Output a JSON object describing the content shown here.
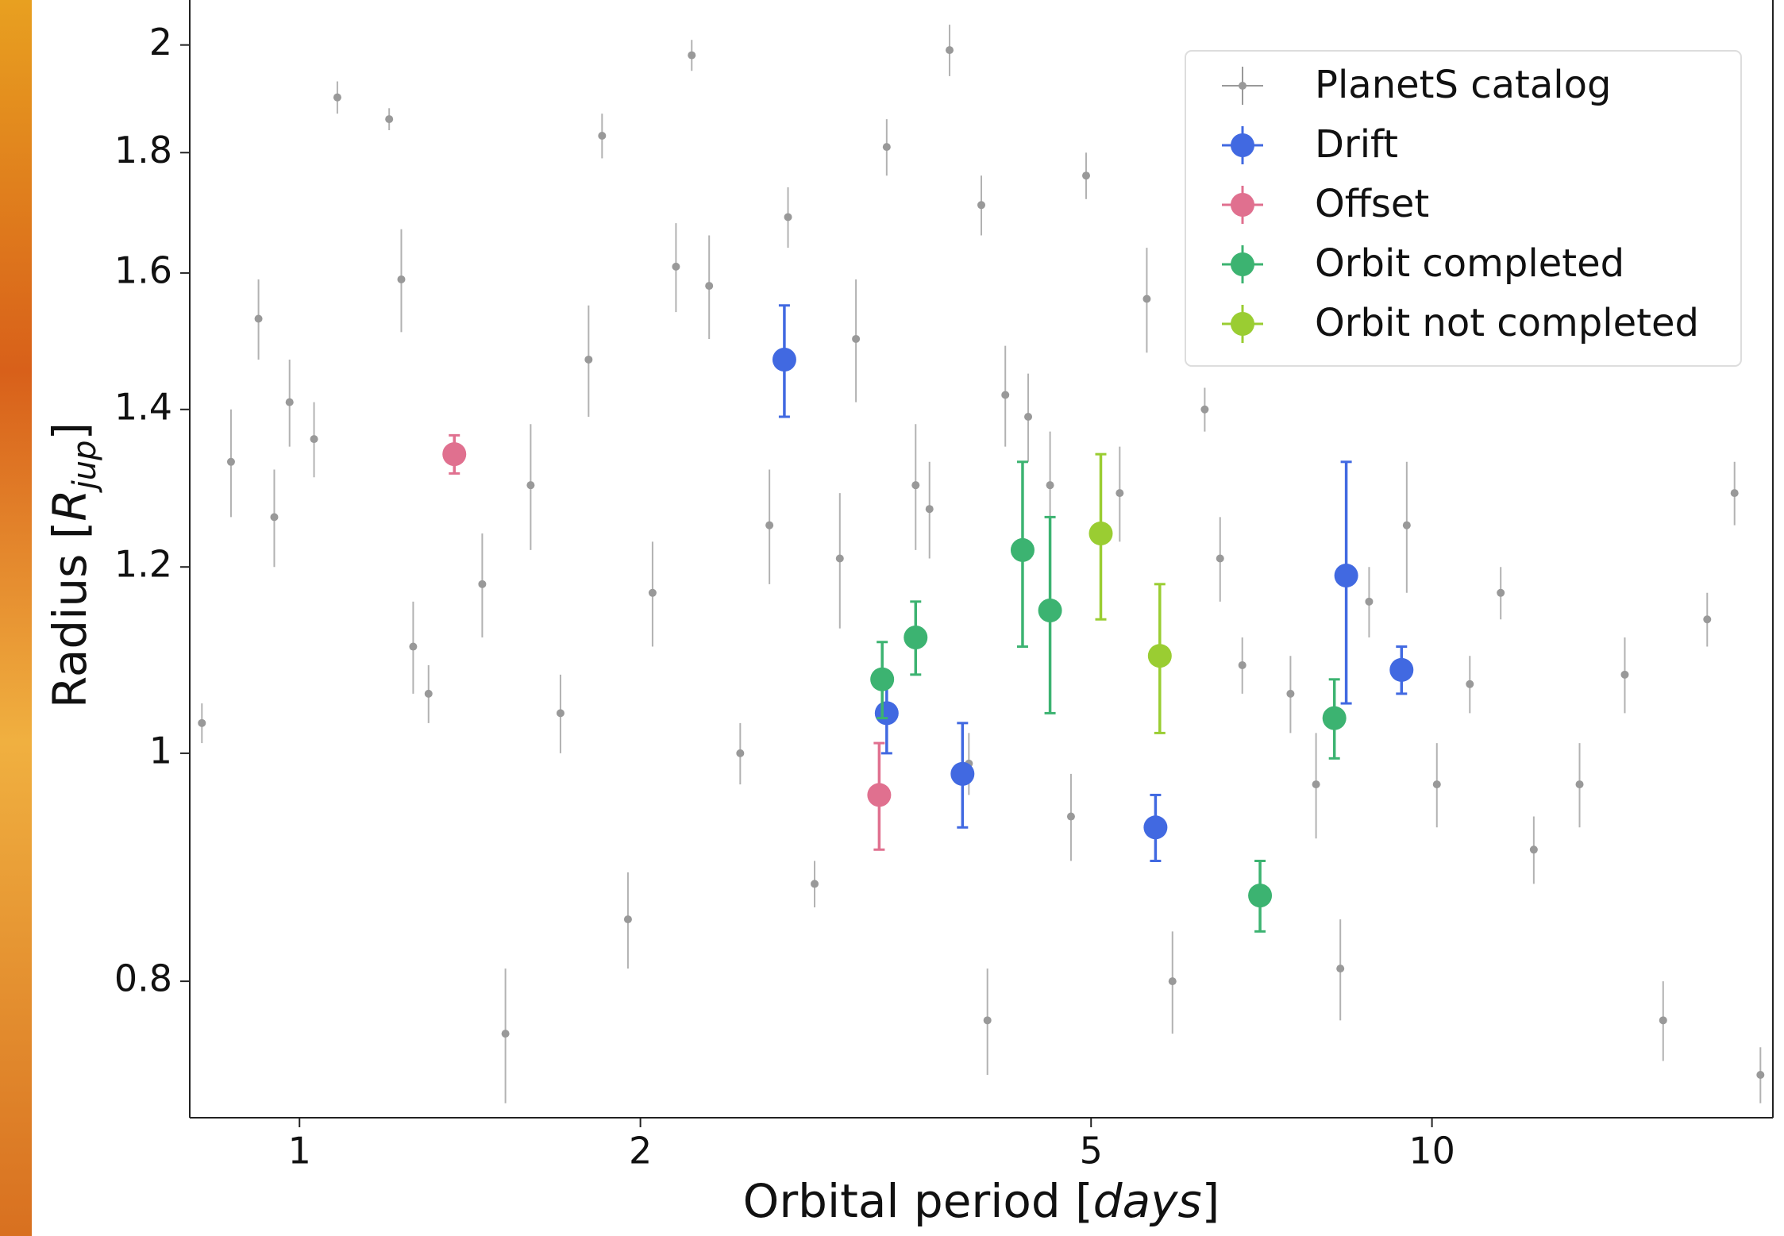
{
  "chart_data": {
    "type": "scatter",
    "xlabel": [
      "Orbital period [",
      "days",
      "]"
    ],
    "ylabel": [
      "Radius [",
      "R",
      "jup",
      "]"
    ],
    "xscale": "log",
    "yscale": "log",
    "xlim": [
      0.8,
      20
    ],
    "ylim": [
      0.7,
      2.09
    ],
    "xticks": [
      1,
      2,
      5,
      10
    ],
    "yticks": [
      0.8,
      1.0,
      1.2,
      1.4,
      1.6,
      1.8,
      2.0
    ],
    "legend": "upper right",
    "series": [
      {
        "name": "PlanetS catalog",
        "color": "#999999",
        "x": [
          0.82,
          0.87,
          0.92,
          0.95,
          0.98,
          1.03,
          1.08,
          1.2,
          1.23,
          1.26,
          1.3,
          1.45,
          1.52,
          1.6,
          1.7,
          1.8,
          1.85,
          1.95,
          2.05,
          2.15,
          2.22,
          2.3,
          2.45,
          2.6,
          2.7,
          2.85,
          3.0,
          3.1,
          3.3,
          3.5,
          3.6,
          3.75,
          3.9,
          4.0,
          4.05,
          4.2,
          4.4,
          4.6,
          4.8,
          4.95,
          5.3,
          5.6,
          5.9,
          6.3,
          6.5,
          6.8,
          7.5,
          7.9,
          8.3,
          8.8,
          9.5,
          10.1,
          10.8,
          11.5,
          12.3,
          13.5,
          14.8,
          16.0,
          17.5,
          18.5,
          19.5
        ],
        "values": [
          1.03,
          1.33,
          1.53,
          1.26,
          1.41,
          1.36,
          1.9,
          1.86,
          1.59,
          1.11,
          1.06,
          1.18,
          0.76,
          1.3,
          1.04,
          1.47,
          1.83,
          0.85,
          1.17,
          1.61,
          1.98,
          1.58,
          1.0,
          1.25,
          1.69,
          0.88,
          1.21,
          1.5,
          1.81,
          1.3,
          1.27,
          1.99,
          0.99,
          1.71,
          0.77,
          1.42,
          1.39,
          1.3,
          0.94,
          1.76,
          1.29,
          1.56,
          0.8,
          1.4,
          1.21,
          1.09,
          1.06,
          0.97,
          0.81,
          1.16,
          1.25,
          0.97,
          1.07,
          1.17,
          0.91,
          0.97,
          1.08,
          0.77,
          1.14,
          1.29,
          0.73
        ],
        "yerr": [
          0.02,
          0.07,
          0.06,
          0.06,
          0.06,
          0.05,
          0.03,
          0.02,
          0.08,
          0.05,
          0.03,
          0.06,
          0.05,
          0.08,
          0.04,
          0.08,
          0.04,
          0.04,
          0.06,
          0.07,
          0.03,
          0.08,
          0.03,
          0.07,
          0.05,
          0.02,
          0.08,
          0.09,
          0.05,
          0.08,
          0.06,
          0.05,
          0.03,
          0.05,
          0.04,
          0.07,
          0.06,
          0.07,
          0.04,
          0.04,
          0.06,
          0.08,
          0.04,
          0.03,
          0.05,
          0.03,
          0.04,
          0.05,
          0.04,
          0.04,
          0.08,
          0.04,
          0.03,
          0.03,
          0.03,
          0.04,
          0.04,
          0.03,
          0.03,
          0.04,
          0.02
        ]
      },
      {
        "name": "Drift",
        "color": "#4169e1",
        "x": [
          2.68,
          3.3,
          3.85,
          5.7,
          8.4,
          9.4
        ],
        "values": [
          1.47,
          1.04,
          0.98,
          0.93,
          1.19,
          1.085
        ],
        "yerr": [
          0.08,
          0.04,
          0.05,
          0.03,
          0.14,
          0.025
        ]
      },
      {
        "name": "Offset",
        "color": "#e0708f",
        "x": [
          1.37,
          3.25
        ],
        "values": [
          1.34,
          0.96
        ],
        "yerr": [
          0.025,
          0.05
        ]
      },
      {
        "name": "Orbit completed",
        "color": "#3cb371",
        "x": [
          3.27,
          3.5,
          4.35,
          4.6,
          7.05,
          8.2
        ],
        "values": [
          1.075,
          1.12,
          1.22,
          1.15,
          0.87,
          1.035
        ],
        "yerr": [
          0.04,
          0.04,
          0.11,
          0.11,
          0.03,
          0.04
        ]
      },
      {
        "name": "Orbit not completed",
        "color": "#9acd32",
        "x": [
          5.1,
          5.75
        ],
        "values": [
          1.24,
          1.1
        ],
        "yerr": [
          0.1,
          0.08
        ]
      }
    ]
  }
}
